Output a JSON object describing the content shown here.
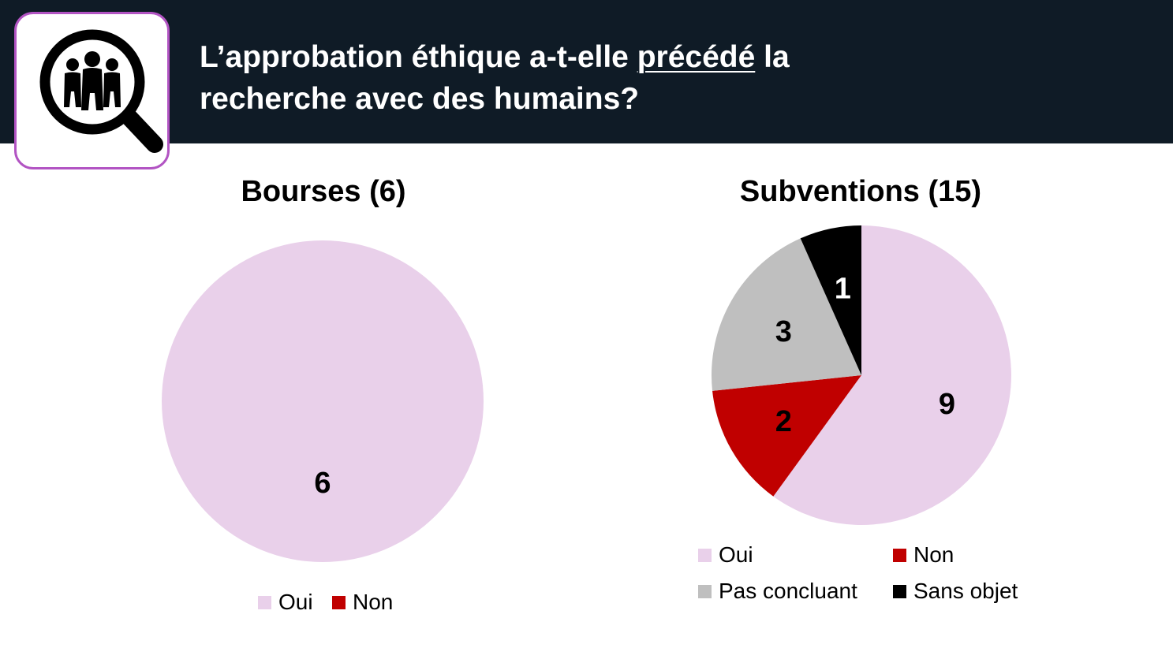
{
  "header": {
    "title_before": "L’approbation éthique a-t-elle ",
    "title_underlined": "précédé",
    "title_after": " la",
    "title_line2": "recherche avec des humains?"
  },
  "icon": "magnifier-people-icon",
  "colors": {
    "oui": "#e9d0ea",
    "non": "#c00000",
    "pas_concluant": "#bfbfbf",
    "sans_objet": "#000000",
    "header_bg": "#0f1b26",
    "icon_border": "#b254c3"
  },
  "chart_data": [
    {
      "type": "pie",
      "title": "Bourses (6)",
      "categories": [
        "Oui",
        "Non"
      ],
      "values": [
        6,
        0
      ],
      "legend": [
        "Oui",
        "Non"
      ],
      "legend_position": "bottom"
    },
    {
      "type": "pie",
      "title": "Subventions (15)",
      "categories": [
        "Oui",
        "Non",
        "Pas concluant",
        "Sans objet"
      ],
      "values": [
        9,
        2,
        3,
        1
      ],
      "legend": [
        "Oui",
        "Non",
        "Pas concluant",
        "Sans objet"
      ],
      "legend_position": "bottom"
    }
  ]
}
